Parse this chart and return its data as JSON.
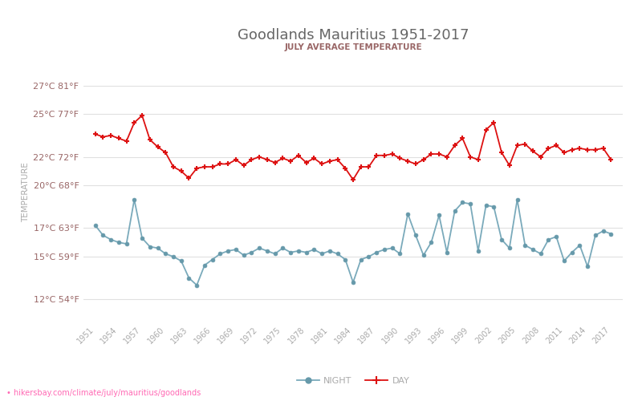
{
  "title": "Goodlands Mauritius 1951-2017",
  "subtitle": "JULY AVERAGE TEMPERATURE",
  "ylabel": "TEMPERATURE",
  "watermark": "• hikersbay.com/climate/july/mauritius/goodlands",
  "y_ticks_c": [
    12,
    15,
    17,
    20,
    22,
    25,
    27
  ],
  "y_ticks_label": [
    "12°C 54°F",
    "15°C 59°F",
    "17°C 63°F",
    "20°C 68°F",
    "22°C 72°F",
    "25°C 77°F",
    "27°C 81°F"
  ],
  "ylim": [
    10.5,
    28.5
  ],
  "xlim": [
    1949.5,
    2018.5
  ],
  "x_ticks": [
    1951,
    1954,
    1957,
    1960,
    1963,
    1966,
    1969,
    1972,
    1975,
    1978,
    1981,
    1984,
    1987,
    1990,
    1993,
    1996,
    1999,
    2002,
    2005,
    2008,
    2011,
    2014,
    2017
  ],
  "day_color": "#dd1111",
  "night_color": "#7aaabb",
  "night_marker_color": "#6699aa",
  "grid_color": "#e0e0e0",
  "title_color": "#666666",
  "subtitle_color": "#996666",
  "axis_label_color": "#aaaaaa",
  "tick_color": "#996666",
  "bg_color": "#ffffff",
  "day_data": {
    "1951": 23.6,
    "1952": 23.4,
    "1953": 23.5,
    "1954": 23.3,
    "1955": 23.1,
    "1956": 24.4,
    "1957": 24.9,
    "1958": 23.2,
    "1959": 22.7,
    "1960": 22.3,
    "1961": 21.3,
    "1962": 21.0,
    "1963": 20.5,
    "1964": 21.2,
    "1965": 21.3,
    "1966": 21.3,
    "1967": 21.5,
    "1968": 21.5,
    "1969": 21.8,
    "1970": 21.4,
    "1971": 21.8,
    "1972": 22.0,
    "1973": 21.8,
    "1974": 21.6,
    "1975": 21.9,
    "1976": 21.7,
    "1977": 22.1,
    "1978": 21.6,
    "1979": 21.9,
    "1980": 21.5,
    "1981": 21.7,
    "1982": 21.8,
    "1983": 21.2,
    "1984": 20.4,
    "1985": 21.3,
    "1986": 21.3,
    "1987": 22.1,
    "1988": 22.1,
    "1989": 22.2,
    "1990": 21.9,
    "1991": 21.7,
    "1992": 21.5,
    "1993": 21.8,
    "1994": 22.2,
    "1995": 22.2,
    "1996": 22.0,
    "1997": 22.8,
    "1998": 23.3,
    "1999": 22.0,
    "2000": 21.8,
    "2001": 23.9,
    "2002": 24.4,
    "2003": 22.3,
    "2004": 21.4,
    "2005": 22.8,
    "2006": 22.9,
    "2007": 22.4,
    "2008": 22.0,
    "2009": 22.6,
    "2010": 22.8,
    "2011": 22.3,
    "2012": 22.5,
    "2013": 22.6,
    "2014": 22.5,
    "2015": 22.5,
    "2016": 22.6,
    "2017": 21.8
  },
  "night_data": {
    "1951": 17.2,
    "1952": 16.5,
    "1953": 16.2,
    "1954": 16.0,
    "1955": 15.9,
    "1956": 19.0,
    "1957": 16.3,
    "1958": 15.7,
    "1959": 15.6,
    "1960": 15.2,
    "1961": 15.0,
    "1962": 14.7,
    "1963": 13.5,
    "1964": 13.0,
    "1965": 14.4,
    "1966": 14.8,
    "1967": 15.2,
    "1968": 15.4,
    "1969": 15.5,
    "1970": 15.1,
    "1971": 15.3,
    "1972": 15.6,
    "1973": 15.4,
    "1974": 15.2,
    "1975": 15.6,
    "1976": 15.3,
    "1977": 15.4,
    "1978": 15.3,
    "1979": 15.5,
    "1980": 15.2,
    "1981": 15.4,
    "1982": 15.2,
    "1983": 14.8,
    "1984": 13.2,
    "1985": 14.8,
    "1986": 15.0,
    "1987": 15.3,
    "1988": 15.5,
    "1989": 15.6,
    "1990": 15.2,
    "1991": 18.0,
    "1992": 16.5,
    "1993": 15.1,
    "1994": 16.0,
    "1995": 17.9,
    "1996": 15.3,
    "1997": 18.2,
    "1998": 18.8,
    "1999": 18.7,
    "2000": 15.4,
    "2001": 18.6,
    "2002": 18.5,
    "2003": 16.2,
    "2004": 15.6,
    "2005": 19.0,
    "2006": 15.8,
    "2007": 15.5,
    "2008": 15.2,
    "2009": 16.2,
    "2010": 16.4,
    "2011": 14.7,
    "2012": 15.3,
    "2013": 15.8,
    "2014": 14.3,
    "2015": 16.5,
    "2016": 16.8,
    "2017": 16.6
  }
}
